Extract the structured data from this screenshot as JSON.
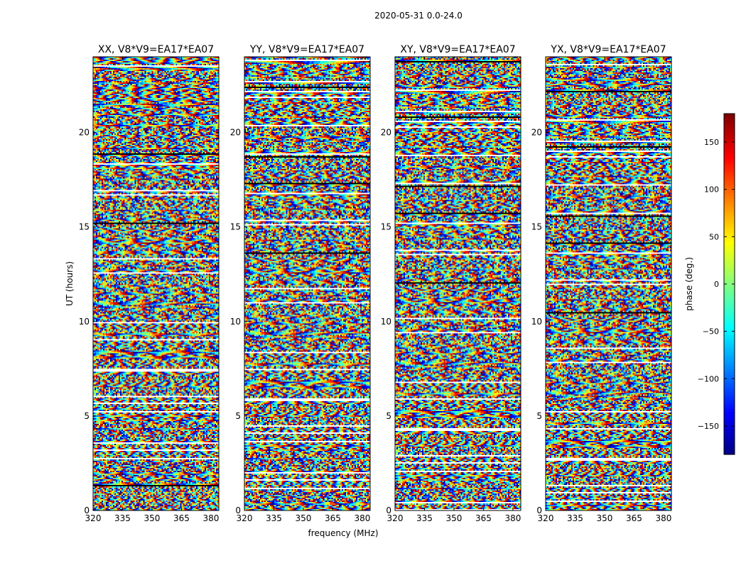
{
  "suptitle": "2020-05-31 0.0-24.0",
  "chart_data": [
    {
      "type": "heatmap",
      "title": "XX, V8*V9=EA17*EA07",
      "xlabel": "",
      "ylabel": "UT (hours)",
      "xlim": [
        320,
        384
      ],
      "ylim": [
        0,
        24
      ],
      "xticks": [
        320,
        335,
        350,
        365,
        380
      ],
      "yticks": [
        0,
        5,
        10,
        15,
        20
      ],
      "value": "phase (deg.)"
    },
    {
      "type": "heatmap",
      "title": "YY, V8*V9=EA17*EA07",
      "xlabel": "frequency (MHz)",
      "ylabel": "",
      "xlim": [
        320,
        384
      ],
      "ylim": [
        0,
        24
      ],
      "xticks": [
        320,
        335,
        350,
        365,
        380
      ],
      "yticks": [
        0,
        5,
        10,
        15,
        20
      ],
      "value": "phase (deg.)"
    },
    {
      "type": "heatmap",
      "title": "XY, V8*V9=EA17*EA07",
      "xlabel": "",
      "ylabel": "",
      "xlim": [
        320,
        384
      ],
      "ylim": [
        0,
        24
      ],
      "xticks": [
        320,
        335,
        350,
        365,
        380
      ],
      "yticks": [
        0,
        5,
        10,
        15,
        20
      ],
      "value": "phase (deg.)"
    },
    {
      "type": "heatmap",
      "title": "YX, V8*V9=EA17*EA07",
      "xlabel": "",
      "ylabel": "",
      "xlim": [
        320,
        384
      ],
      "ylim": [
        0,
        24
      ],
      "xticks": [
        320,
        335,
        350,
        365,
        380
      ],
      "yticks": [
        0,
        5,
        10,
        15,
        20
      ],
      "value": "phase (deg.)"
    }
  ],
  "colorbar": {
    "label": "phase (deg.)",
    "range": [
      -180,
      180
    ],
    "ticks": [
      -150,
      -100,
      -50,
      0,
      50,
      100,
      150
    ],
    "colormap": "jet"
  }
}
